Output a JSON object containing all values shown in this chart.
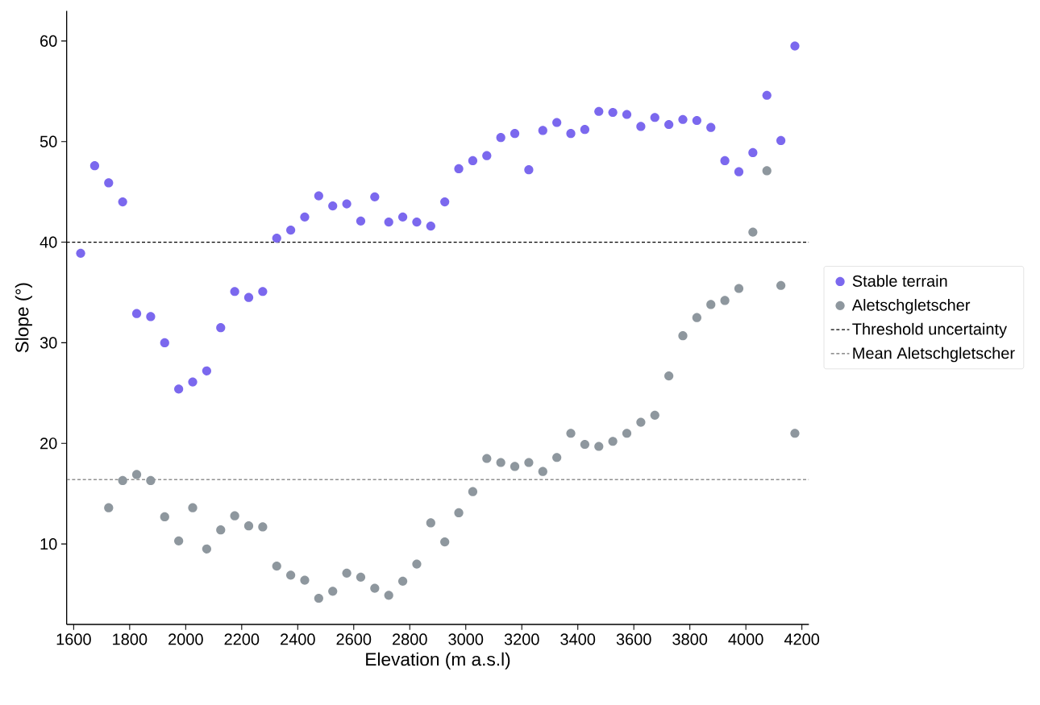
{
  "chart_data": {
    "type": "scatter",
    "xlabel": "Elevation (m a.s.l)",
    "ylabel": "Slope (°)",
    "x": [
      1625,
      1675,
      1725,
      1775,
      1825,
      1875,
      1925,
      1975,
      2025,
      2075,
      2125,
      2175,
      2225,
      2275,
      2325,
      2375,
      2425,
      2475,
      2525,
      2575,
      2625,
      2675,
      2725,
      2775,
      2825,
      2875,
      2925,
      2975,
      3025,
      3075,
      3125,
      3175,
      3225,
      3275,
      3325,
      3375,
      3425,
      3475,
      3525,
      3575,
      3625,
      3675,
      3725,
      3775,
      3825,
      3875,
      3925,
      3975,
      4025,
      4075,
      4125,
      4175
    ],
    "series": [
      {
        "name": "Stable terrain",
        "color": "#7b68ee",
        "values": [
          38.9,
          47.6,
          45.9,
          44.0,
          32.9,
          32.6,
          30.0,
          25.4,
          26.1,
          27.2,
          31.5,
          35.1,
          34.5,
          35.1,
          40.4,
          41.2,
          42.5,
          44.6,
          43.6,
          43.8,
          42.1,
          44.5,
          42.0,
          42.5,
          42.0,
          41.6,
          44.0,
          47.3,
          48.1,
          48.6,
          50.4,
          50.8,
          47.2,
          51.1,
          51.9,
          50.8,
          51.2,
          53.0,
          52.9,
          52.7,
          51.5,
          52.4,
          51.7,
          52.2,
          52.1,
          51.4,
          48.1,
          47.0,
          48.9,
          54.6,
          50.1,
          59.5
        ]
      },
      {
        "name": "Aletschgletscher",
        "color": "#8e979e",
        "values": [
          null,
          null,
          13.6,
          16.3,
          16.9,
          16.3,
          12.7,
          10.3,
          13.6,
          9.5,
          11.4,
          12.8,
          11.8,
          11.7,
          7.8,
          6.9,
          6.4,
          4.6,
          5.3,
          7.1,
          6.7,
          5.6,
          4.9,
          6.3,
          8.0,
          12.1,
          10.2,
          13.1,
          15.2,
          18.5,
          18.1,
          17.7,
          18.1,
          17.2,
          18.6,
          21.0,
          19.9,
          19.7,
          20.2,
          21.0,
          22.1,
          22.8,
          26.7,
          30.7,
          32.5,
          33.8,
          34.2,
          35.4,
          41.0,
          47.1,
          35.7,
          21.0
        ]
      }
    ],
    "ref_lines": [
      {
        "axis": "y",
        "value": 40,
        "label": "Threshold uncertainty",
        "color": "#000000",
        "line_style": "dashed"
      },
      {
        "axis": "y",
        "value": 16.4,
        "label": "Mean Aletschgletscher",
        "color": "#6e6e6e",
        "line_style": "dashed"
      }
    ],
    "xlim": [
      1575,
      4225
    ],
    "ylim": [
      2,
      63
    ],
    "xticks": [
      1600,
      1800,
      2000,
      2200,
      2400,
      2600,
      2800,
      3000,
      3200,
      3400,
      3600,
      3800,
      4000,
      4200
    ],
    "yticks": [
      10,
      20,
      30,
      40,
      50,
      60
    ],
    "grid": false,
    "legend": "right",
    "marker": "circle"
  }
}
